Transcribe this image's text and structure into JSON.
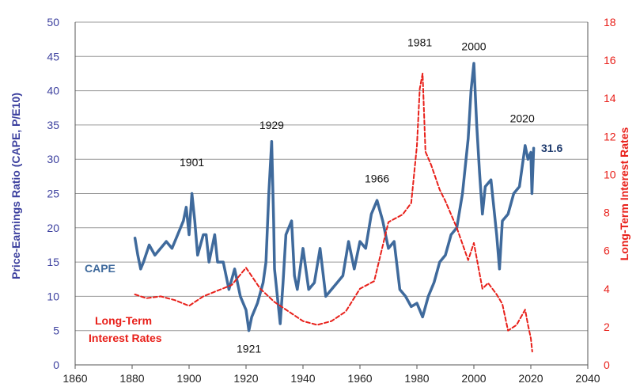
{
  "chart_data": {
    "type": "line",
    "xlim": [
      1860,
      2040
    ],
    "x_ticks": [
      "1860",
      "1880",
      "1900",
      "1920",
      "1940",
      "1960",
      "1980",
      "2000",
      "2020",
      "2040"
    ],
    "y_left": {
      "label": "Price-Earnings Ratio (CAPE, P/E10)",
      "lim": [
        0,
        50
      ],
      "ticks": [
        "0",
        "5",
        "10",
        "15",
        "20",
        "25",
        "30",
        "35",
        "40",
        "45",
        "50"
      ]
    },
    "y_right": {
      "label": "Long-Term Interest Rates",
      "lim": [
        0,
        18
      ],
      "ticks": [
        "0",
        "2",
        "4",
        "6",
        "8",
        "10",
        "12",
        "14",
        "16",
        "18"
      ]
    },
    "grid": true,
    "series": [
      {
        "name": "CAPE",
        "axis": "left",
        "color": "#3f6a9c",
        "style": "solid",
        "x": [
          1881,
          1882,
          1883,
          1884,
          1886,
          1888,
          1890,
          1892,
          1894,
          1896,
          1898,
          1899,
          1900,
          1901,
          1902,
          1903,
          1905,
          1906,
          1907,
          1908,
          1909,
          1910,
          1912,
          1914,
          1916,
          1918,
          1920,
          1921,
          1922,
          1924,
          1926,
          1927,
          1928,
          1929,
          1929.7,
          1930,
          1931,
          1932,
          1933,
          1934,
          1936,
          1937,
          1938,
          1940,
          1942,
          1944,
          1946,
          1948,
          1950,
          1952,
          1954,
          1956,
          1958,
          1960,
          1962,
          1964,
          1966,
          1968,
          1970,
          1972,
          1974,
          1976,
          1978,
          1980,
          1982,
          1984,
          1986,
          1988,
          1990,
          1992,
          1994,
          1996,
          1998,
          1999,
          2000,
          2001,
          2002,
          2003,
          2004,
          2006,
          2008,
          2009,
          2010,
          2012,
          2014,
          2016,
          2018,
          2019,
          2020,
          2020.4,
          2021
        ],
        "y": [
          18.5,
          16,
          14,
          15,
          17.5,
          16,
          17,
          18,
          17,
          19,
          21,
          23,
          19,
          25,
          21,
          16,
          19,
          19,
          15,
          17,
          19,
          15,
          15,
          11,
          14,
          10,
          8,
          5,
          7,
          9,
          12,
          15,
          25,
          32.6,
          21,
          14,
          10,
          6,
          12,
          19,
          21,
          13,
          11,
          17,
          11,
          12,
          17,
          10,
          11,
          12,
          13,
          18,
          14,
          18,
          17,
          22,
          24,
          21,
          17,
          18,
          11,
          10,
          8.5,
          9,
          7,
          10,
          12,
          15,
          16,
          19,
          20,
          25,
          33,
          40,
          44,
          35,
          28,
          22,
          26,
          27,
          19,
          14,
          21,
          22,
          25,
          26,
          32,
          30,
          31,
          25,
          31.6
        ]
      },
      {
        "name": "Long-Term Interest Rates",
        "axis": "right",
        "color": "#e8201a",
        "style": "dashed",
        "x": [
          1881,
          1885,
          1890,
          1895,
          1900,
          1905,
          1910,
          1915,
          1920,
          1925,
          1930,
          1935,
          1940,
          1945,
          1950,
          1955,
          1960,
          1965,
          1970,
          1975,
          1978,
          1980,
          1981,
          1982,
          1983,
          1985,
          1988,
          1990,
          1994,
          1998,
          2000,
          2003,
          2005,
          2008,
          2010,
          2012,
          2015,
          2018,
          2019,
          2020,
          2020.5
        ],
        "y": [
          3.7,
          3.5,
          3.6,
          3.4,
          3.1,
          3.6,
          3.9,
          4.2,
          5.1,
          4.0,
          3.3,
          2.8,
          2.3,
          2.1,
          2.3,
          2.8,
          4.0,
          4.4,
          7.5,
          7.9,
          8.5,
          11.5,
          14.5,
          15.3,
          11.2,
          10.5,
          9.2,
          8.6,
          7.2,
          5.5,
          6.4,
          4.0,
          4.3,
          3.7,
          3.2,
          1.8,
          2.1,
          2.9,
          2.1,
          1.4,
          0.7
        ]
      }
    ],
    "annotations": [
      {
        "text": "1901",
        "x": 1901,
        "y": 29,
        "axis": "left"
      },
      {
        "text": "1921",
        "x": 1921,
        "y": 1.8,
        "axis": "left"
      },
      {
        "text": "1929",
        "x": 1929,
        "y": 34.4,
        "axis": "left"
      },
      {
        "text": "1966",
        "x": 1966,
        "y": 26.6,
        "axis": "left"
      },
      {
        "text": "1981",
        "x": 1981,
        "y": 46.5,
        "axis": "left"
      },
      {
        "text": "2000",
        "x": 2000,
        "y": 45.9,
        "axis": "left"
      },
      {
        "text": "2020",
        "x": 2017,
        "y": 35.4,
        "axis": "left"
      }
    ],
    "last_value_label": "31.6",
    "series_labels": {
      "cape": "CAPE",
      "ltr_line1": "Long-Term",
      "ltr_line2": "Interest Rates"
    }
  }
}
